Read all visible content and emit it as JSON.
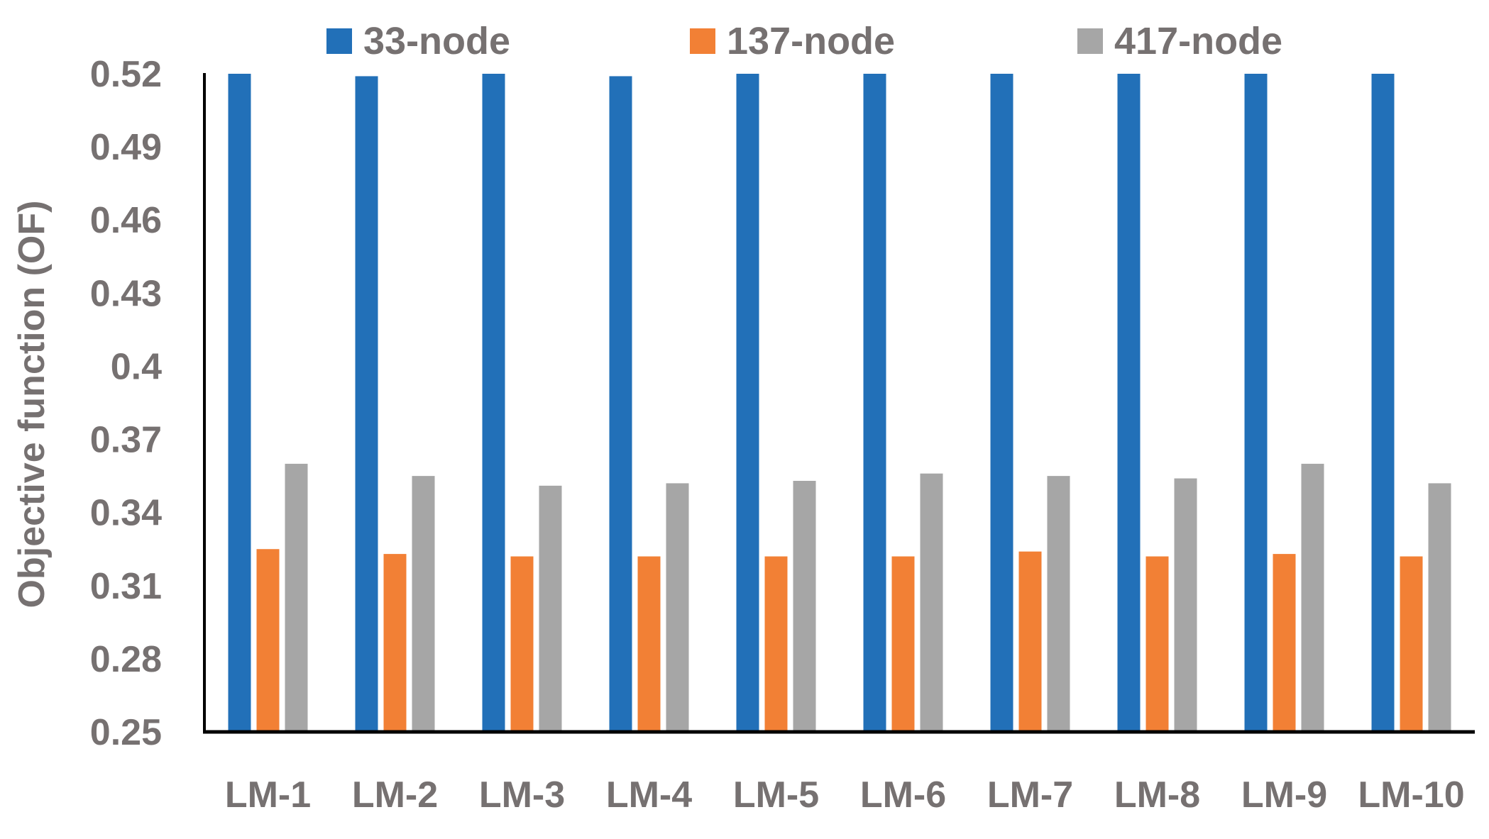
{
  "chart_data": {
    "type": "bar",
    "categories": [
      "LM-1",
      "LM-2",
      "LM-3",
      "LM-4",
      "LM-5",
      "LM-6",
      "LM-7",
      "LM-8",
      "LM-9",
      "LM-10"
    ],
    "series": [
      {
        "name": "33-node",
        "color": "#2270B8",
        "values": [
          0.52,
          0.519,
          0.52,
          0.519,
          0.52,
          0.52,
          0.52,
          0.52,
          0.52,
          0.52
        ]
      },
      {
        "name": "137-node",
        "color": "#F28035",
        "values": [
          0.325,
          0.323,
          0.322,
          0.322,
          0.322,
          0.322,
          0.324,
          0.322,
          0.323,
          0.322
        ]
      },
      {
        "name": "417-node",
        "color": "#A6A6A6",
        "values": [
          0.36,
          0.355,
          0.351,
          0.352,
          0.353,
          0.356,
          0.355,
          0.354,
          0.36,
          0.352
        ]
      }
    ],
    "title": "",
    "xlabel": "",
    "ylabel": "Objective function (OF)",
    "ylim": [
      0.25,
      0.52
    ],
    "yticks": [
      "0.25",
      "0.28",
      "0.31",
      "0.34",
      "0.37",
      "0.4",
      "0.43",
      "0.46",
      "0.49",
      "0.52"
    ],
    "grid": false,
    "legend_position": "top"
  }
}
